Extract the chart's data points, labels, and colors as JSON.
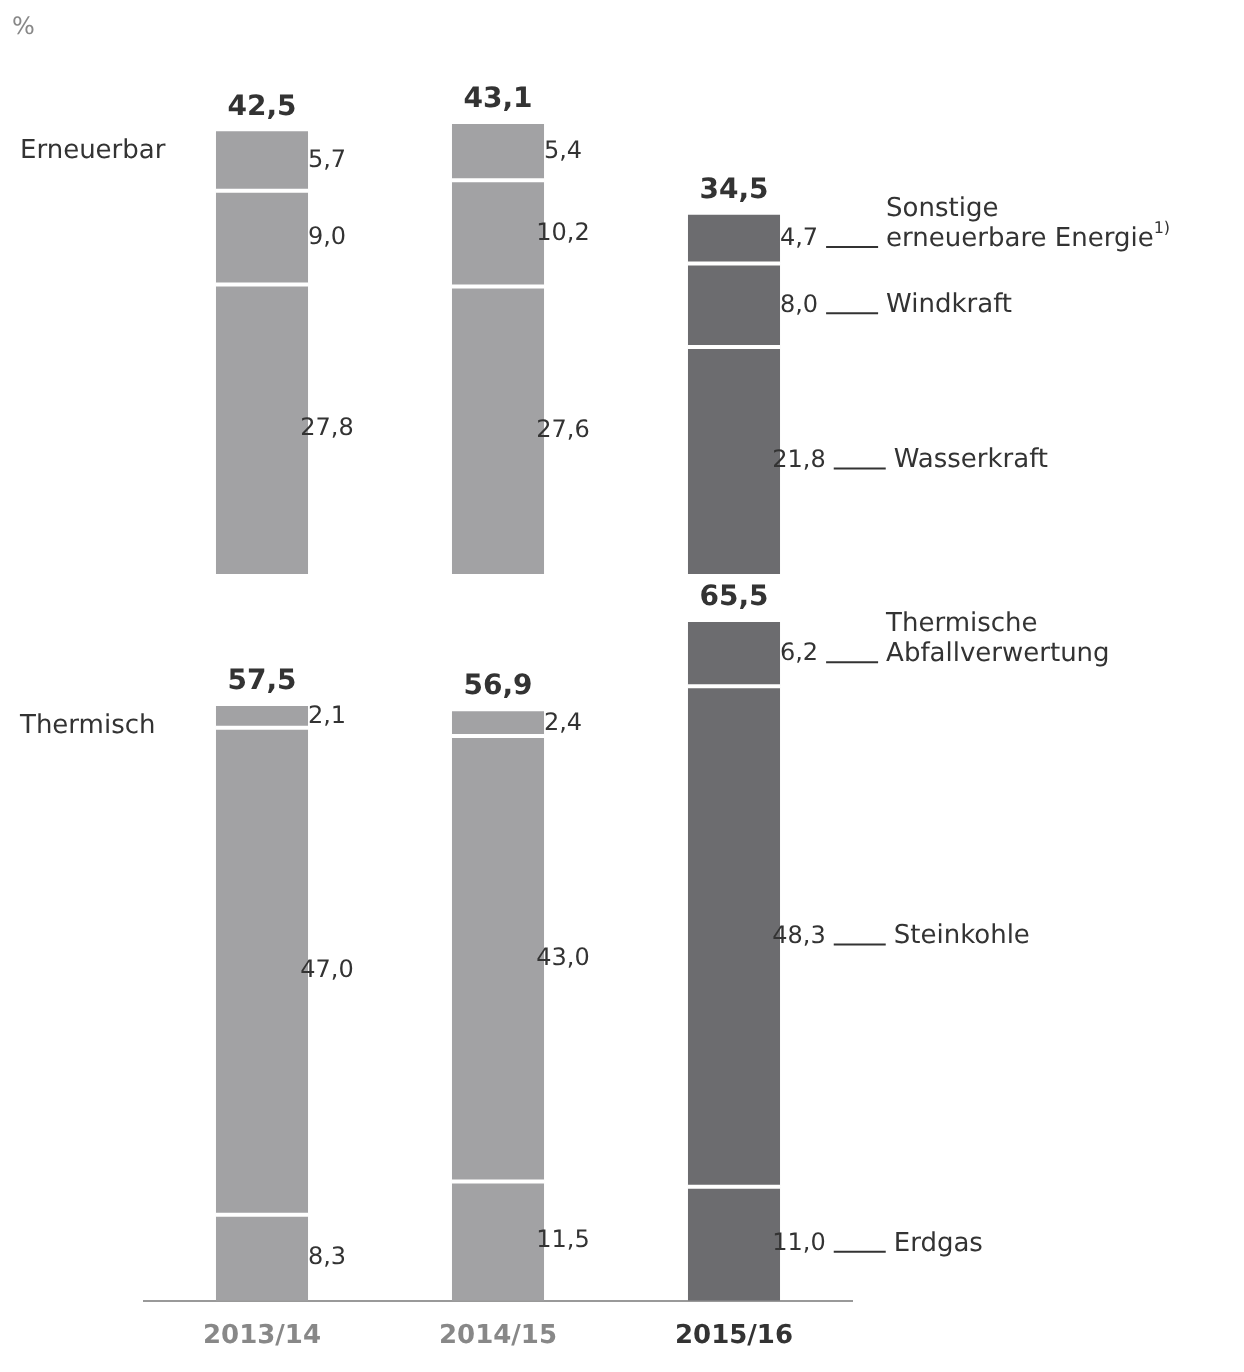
{
  "chart_data": [
    {
      "type": "bar",
      "title": "Erneuerbar",
      "stacked": true,
      "categories": [
        "2013/14",
        "2014/15",
        "2015/16"
      ],
      "tick_labels": false,
      "legend": false,
      "grid": false,
      "annotations": [
        "%"
      ],
      "totals": [
        "42,5",
        "43,1",
        "34,5"
      ],
      "series": [
        {
          "name": "Wasserkraft",
          "colors": [
            "#a2a2a4",
            "#a2a2a4",
            "#6c6c6f"
          ],
          "values": [
            27.8,
            27.6,
            21.8
          ],
          "value_labels": [
            "27,8",
            "27,6",
            "21,8"
          ]
        },
        {
          "name": "Windkraft",
          "colors": [
            "#a2a2a4",
            "#a2a2a4",
            "#6c6c6f"
          ],
          "values": [
            9.0,
            10.2,
            8.0
          ],
          "value_labels": [
            "9,0",
            "10,2",
            "8,0"
          ]
        },
        {
          "name": "Sonstige erneuerbare Energie$^{1)}$",
          "colors": [
            "#a2a2a4",
            "#a2a2a4",
            "#6c6c6f"
          ],
          "values": [
            5.7,
            5.4,
            4.7
          ],
          "value_labels": [
            "5,7",
            "5,4",
            "4,7"
          ]
        }
      ]
    },
    {
      "type": "bar",
      "title": "Thermisch",
      "stacked": true,
      "categories": [
        "2013/14",
        "2014/15",
        "2015/16"
      ],
      "tick_labels": "x",
      "legend": false,
      "grid": false,
      "totals": [
        "57,5",
        "56,9",
        "65,5"
      ],
      "series": [
        {
          "name": "Erdgas",
          "colors": [
            "#a2a2a4",
            "#a2a2a4",
            "#6c6c6f"
          ],
          "values": [
            8.3,
            11.5,
            11.0
          ],
          "value_labels": [
            "8,3",
            "11,5",
            "11,0"
          ]
        },
        {
          "name": "Steinkohle",
          "colors": [
            "#a2a2a4",
            "#a2a2a4",
            "#6c6c6f"
          ],
          "values": [
            47.0,
            43.0,
            48.3
          ],
          "value_labels": [
            "47,0",
            "43,0",
            "48,3"
          ]
        },
        {
          "name": "Thermische Abfallverwertung",
          "colors": [
            "#a2a2a4",
            "#a2a2a4",
            "#6c6c6f"
          ],
          "values": [
            2.1,
            2.4,
            6.2
          ],
          "value_labels": [
            "2,1",
            "2,4",
            "6,2"
          ]
        }
      ]
    }
  ]
}
